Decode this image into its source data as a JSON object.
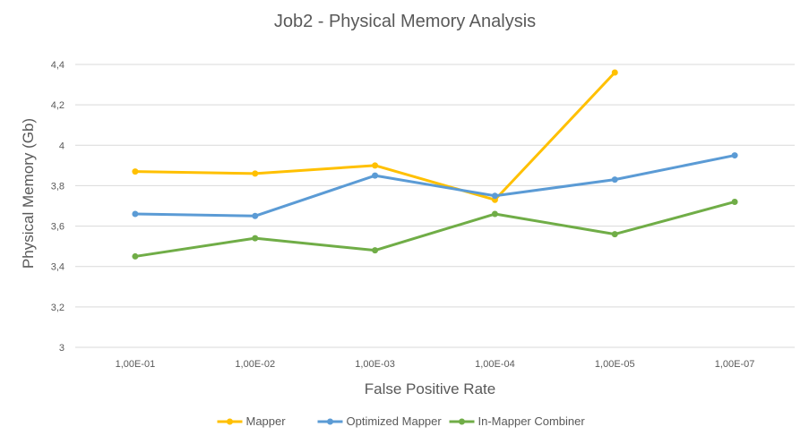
{
  "chart_data": {
    "type": "line",
    "title": "Job2 - Physical Memory Analysis",
    "xlabel": "False Positive Rate",
    "ylabel": "Physical Memory (Gb)",
    "categories": [
      "1,00E-01",
      "1,00E-02",
      "1,00E-03",
      "1,00E-04",
      "1,00E-05",
      "1,00E-07"
    ],
    "ylim": [
      3,
      4.4
    ],
    "yticks": [
      3,
      3.2,
      3.4,
      3.6,
      3.8,
      4,
      4.2,
      4.4
    ],
    "ytick_labels": [
      "3",
      "3,2",
      "3,4",
      "3,6",
      "3,8",
      "4",
      "4,2",
      "4,4"
    ],
    "grid": true,
    "legend_position": "bottom",
    "series": [
      {
        "name": "Mapper",
        "color": "#FFC000",
        "values": [
          3.87,
          3.86,
          3.9,
          3.73,
          4.36,
          null
        ]
      },
      {
        "name": "Optimized Mapper",
        "color": "#5B9BD5",
        "values": [
          3.66,
          3.65,
          3.85,
          3.75,
          3.83,
          3.95
        ]
      },
      {
        "name": "In-Mapper Combiner",
        "color": "#70AD47",
        "values": [
          3.45,
          3.54,
          3.48,
          3.66,
          3.56,
          3.72
        ]
      }
    ]
  }
}
